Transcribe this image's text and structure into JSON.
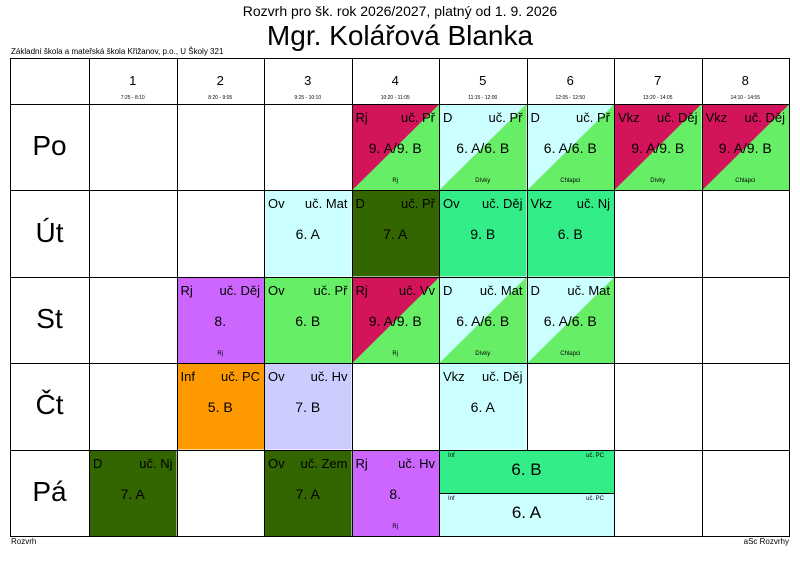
{
  "header": {
    "title_small": "Rozvrh pro šk. rok 2026/2027, platný od 1. 9. 2026",
    "title_big": "Mgr. Kolářová Blanka",
    "school": "Základní škola a mateřská škola Křižanov, p.o., U Školy 321"
  },
  "footer": {
    "left": "Rozvrh",
    "right": "aSc Rozvrhy"
  },
  "colors": {
    "pink": "#d4145a",
    "green": "#33ee66",
    "light_green": "#66ee66",
    "cyan": "#ccffff",
    "mint": "#33ee88",
    "dark_green": "#336600",
    "purple": "#cc66ff",
    "orange": "#ff9900",
    "lavender": "#ccccff",
    "light_cyan_green": "#99ffcc"
  },
  "periods": [
    {
      "num": "1",
      "time": "7:25 - 8:10"
    },
    {
      "num": "2",
      "time": "8:20 - 9:05"
    },
    {
      "num": "3",
      "time": "9:25 - 10:10"
    },
    {
      "num": "4",
      "time": "10:20 - 11:05"
    },
    {
      "num": "5",
      "time": "11:15 - 12:00"
    },
    {
      "num": "6",
      "time": "12:05 - 12:50"
    },
    {
      "num": "7",
      "time": "13:20 - 14:05"
    },
    {
      "num": "8",
      "time": "14:10 - 14:55"
    }
  ],
  "days": [
    "Po",
    "Út",
    "St",
    "Čt",
    "Pá"
  ],
  "lessons": [
    {
      "day": 0,
      "period": 3,
      "code": "Rj",
      "teacher": "uč. Př",
      "cls": "9. A/9. B",
      "group": "Rj",
      "bg": "#d4145a",
      "bg2": "#66ee66"
    },
    {
      "day": 0,
      "period": 4,
      "code": "D",
      "teacher": "uč. Př",
      "cls": "6. A/6. B",
      "group": "Dívky",
      "bg": "#ccffff",
      "bg2": "#66ee66"
    },
    {
      "day": 0,
      "period": 5,
      "code": "D",
      "teacher": "uč. Př",
      "cls": "6. A/6. B",
      "group": "Chlapci",
      "bg": "#ccffff",
      "bg2": "#66ee66"
    },
    {
      "day": 0,
      "period": 6,
      "code": "Vkz",
      "teacher": "uč. Děj",
      "cls": "9. A/9. B",
      "group": "Dívky",
      "bg": "#d4145a",
      "bg2": "#66ee66"
    },
    {
      "day": 0,
      "period": 7,
      "code": "Vkz",
      "teacher": "uč. Děj",
      "cls": "9. A/9. B",
      "group": "Chlapci",
      "bg": "#d4145a",
      "bg2": "#66ee66"
    },
    {
      "day": 1,
      "period": 2,
      "code": "Ov",
      "teacher": "uč. Mat",
      "cls": "6. A",
      "group": "",
      "bg": "#ccffff",
      "bg2": ""
    },
    {
      "day": 1,
      "period": 3,
      "code": "D",
      "teacher": "uč. Př",
      "cls": "7. A",
      "group": "",
      "bg": "#336600",
      "bg2": ""
    },
    {
      "day": 1,
      "period": 4,
      "code": "Ov",
      "teacher": "uč. Děj",
      "cls": "9. B",
      "group": "",
      "bg": "#33ee88",
      "bg2": ""
    },
    {
      "day": 1,
      "period": 5,
      "code": "Vkz",
      "teacher": "uč. Nj",
      "cls": "6. B",
      "group": "",
      "bg": "#33ee88",
      "bg2": ""
    },
    {
      "day": 2,
      "period": 1,
      "code": "Rj",
      "teacher": "uč. Děj",
      "cls": "8.",
      "group": "Rj",
      "bg": "#cc66ff",
      "bg2": ""
    },
    {
      "day": 2,
      "period": 2,
      "code": "Ov",
      "teacher": "uč. Př",
      "cls": "6. B",
      "group": "",
      "bg": "#66ee66",
      "bg2": ""
    },
    {
      "day": 2,
      "period": 3,
      "code": "Rj",
      "teacher": "uč. Vv",
      "cls": "9. A/9. B",
      "group": "Rj",
      "bg": "#d4145a",
      "bg2": "#66ee66"
    },
    {
      "day": 2,
      "period": 4,
      "code": "D",
      "teacher": "uč. Mat",
      "cls": "6. A/6. B",
      "group": "Dívky",
      "bg": "#ccffff",
      "bg2": "#66ee66"
    },
    {
      "day": 2,
      "period": 5,
      "code": "D",
      "teacher": "uč. Mat",
      "cls": "6. A/6. B",
      "group": "Chlapci",
      "bg": "#ccffff",
      "bg2": "#66ee66"
    },
    {
      "day": 3,
      "period": 1,
      "code": "Inf",
      "teacher": "uč. PC",
      "cls": "5. B",
      "group": "",
      "bg": "#ff9900",
      "bg2": ""
    },
    {
      "day": 3,
      "period": 2,
      "code": "Ov",
      "teacher": "uč. Hv",
      "cls": "7. B",
      "group": "",
      "bg": "#ccccff",
      "bg2": ""
    },
    {
      "day": 3,
      "period": 4,
      "code": "Vkz",
      "teacher": "uč. Děj",
      "cls": "6. A",
      "group": "",
      "bg": "#ccffff",
      "bg2": ""
    },
    {
      "day": 4,
      "period": 0,
      "code": "D",
      "teacher": "uč. Nj",
      "cls": "7. A",
      "group": "",
      "bg": "#336600",
      "bg2": ""
    },
    {
      "day": 4,
      "period": 2,
      "code": "Ov",
      "teacher": "uč. Zem",
      "cls": "7. A",
      "group": "",
      "bg": "#336600",
      "bg2": ""
    },
    {
      "day": 4,
      "period": 3,
      "code": "Rj",
      "teacher": "uč. Hv",
      "cls": "8.",
      "group": "Rj",
      "bg": "#cc66ff",
      "bg2": ""
    }
  ],
  "double_lessons": [
    {
      "day": 4,
      "period_start": 4,
      "span": 2,
      "code": "Inf",
      "teacher": "uč. PC",
      "cls": "6. B",
      "bg": "#33ee88",
      "half": 0
    },
    {
      "day": 4,
      "period_start": 4,
      "span": 2,
      "code": "Inf",
      "teacher": "uč. PC",
      "cls": "6. A",
      "bg": "#ccffff",
      "half": 1
    }
  ]
}
